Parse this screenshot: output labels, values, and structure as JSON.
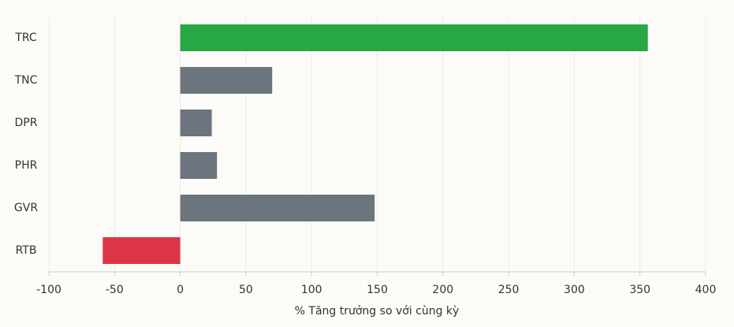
{
  "chart_data": {
    "type": "barh",
    "x_label": "% Tăng trưởng so với cùng kỳ",
    "categories": [
      "TRC",
      "TNC",
      "DPR",
      "PHR",
      "GVR",
      "RTB"
    ],
    "values": [
      356,
      70,
      24,
      28,
      148,
      -59
    ],
    "colors": [
      "#28a745",
      "#6c757d",
      "#6c757d",
      "#6c757d",
      "#6c757d",
      "#dc3545"
    ],
    "xlim": [
      -100,
      400
    ],
    "xticks": [
      -100,
      -50,
      0,
      50,
      100,
      150,
      200,
      250,
      300,
      350,
      400
    ],
    "grid": true
  }
}
